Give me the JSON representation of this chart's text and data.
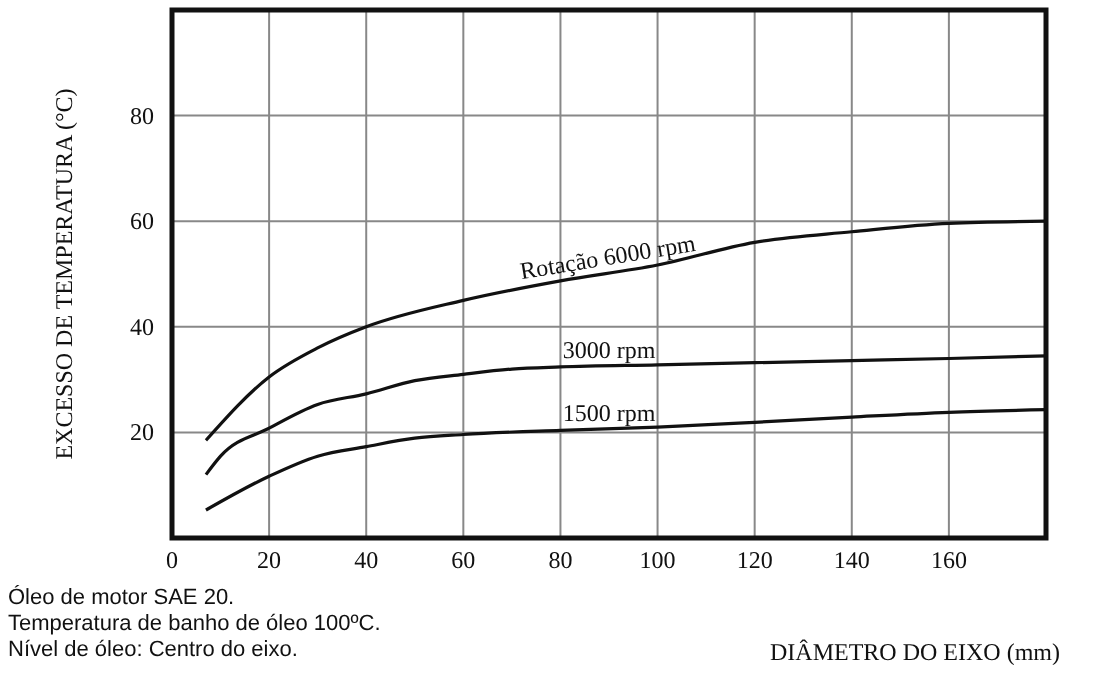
{
  "chart_data": {
    "type": "line",
    "xlabel": "DIÂMETRO DO EIXO (mm)",
    "ylabel": "EXCESSO DE TEMPERATURA (°C)",
    "xlim": [
      0,
      180
    ],
    "ylim": [
      0,
      100
    ],
    "xticks": [
      0,
      20,
      40,
      60,
      80,
      100,
      120,
      140,
      160
    ],
    "yticks": [
      20,
      40,
      60,
      80
    ],
    "grid": true,
    "marker": "none",
    "line_style": "solid",
    "series": [
      {
        "name": "Rotação 6000 rpm",
        "color": "#111111",
        "x": [
          7,
          20,
          30,
          40,
          60,
          80,
          100,
          120,
          140,
          160,
          180
        ],
        "values": [
          18.5,
          30.5,
          36,
          40,
          45,
          48.7,
          51.7,
          56,
          58,
          59.6,
          60
        ]
      },
      {
        "name": "3000 rpm",
        "color": "#111111",
        "x": [
          7,
          10,
          20,
          30,
          40,
          50,
          60,
          70,
          80,
          100,
          120,
          140,
          160,
          180
        ],
        "values": [
          12,
          15.5,
          20.8,
          25.3,
          27.3,
          29.8,
          31,
          32,
          32.4,
          32.8,
          33.2,
          33.6,
          34,
          34.5
        ]
      },
      {
        "name": "1500 rpm",
        "color": "#111111",
        "x": [
          7,
          20,
          30,
          40,
          50,
          60,
          80,
          100,
          120,
          140,
          160,
          180
        ],
        "values": [
          5.3,
          11.7,
          15.5,
          17.3,
          18.9,
          19.6,
          20.4,
          21,
          21.9,
          22.9,
          23.8,
          24.3
        ]
      }
    ],
    "annotations": [
      "Óleo de motor SAE 20.",
      "Temperatura de banho de óleo 100ºC.",
      "Nível de óleo: Centro do eixo."
    ]
  }
}
